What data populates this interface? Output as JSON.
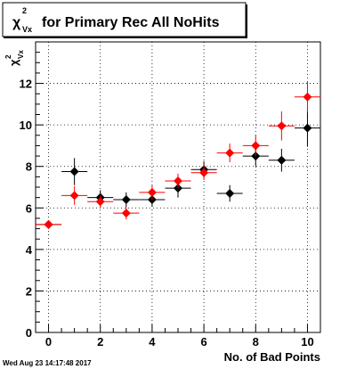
{
  "chart_data": {
    "type": "scatter",
    "title": {
      "symbol": "χ",
      "superscript": "2",
      "subscript": "Vx",
      "text": "for Primary Rec All NoHits"
    },
    "xlabel": "No. of Bad Points",
    "ylabel": {
      "symbol": "χ",
      "superscript": "2",
      "subscript": "Vx"
    },
    "xlim": [
      -0.5,
      10.5
    ],
    "ylim": [
      0,
      14
    ],
    "xticks": [
      0,
      2,
      4,
      6,
      8,
      10
    ],
    "yticks": [
      0,
      2,
      4,
      6,
      8,
      10,
      12
    ],
    "grid": true,
    "series": [
      {
        "color": "#000000",
        "marker": "diamond",
        "points": [
          {
            "x": 0,
            "y": 5.2,
            "yerr": 0.1
          },
          {
            "x": 1,
            "y": 7.75,
            "yerr": 0.65
          },
          {
            "x": 2,
            "y": 6.5,
            "yerr": 0.35
          },
          {
            "x": 3,
            "y": 6.4,
            "yerr": 0.35
          },
          {
            "x": 4,
            "y": 6.4,
            "yerr": 0.35
          },
          {
            "x": 5,
            "y": 6.95,
            "yerr": 0.45
          },
          {
            "x": 6,
            "y": 7.85,
            "yerr": 0.4
          },
          {
            "x": 7,
            "y": 6.7,
            "yerr": 0.4
          },
          {
            "x": 8,
            "y": 8.5,
            "yerr": 0.5
          },
          {
            "x": 9,
            "y": 8.3,
            "yerr": 0.55
          },
          {
            "x": 10,
            "y": 9.85,
            "yerr": 0.9
          }
        ]
      },
      {
        "color": "#ff0000",
        "marker": "diamond",
        "points": [
          {
            "x": 0,
            "y": 5.2,
            "yerr": 0.1
          },
          {
            "x": 1,
            "y": 6.6,
            "yerr": 0.45
          },
          {
            "x": 2,
            "y": 6.3,
            "yerr": 0.3
          },
          {
            "x": 3,
            "y": 5.75,
            "yerr": 0.3
          },
          {
            "x": 4,
            "y": 6.75,
            "yerr": 0.35
          },
          {
            "x": 5,
            "y": 7.3,
            "yerr": 0.35
          },
          {
            "x": 6,
            "y": 7.7,
            "yerr": 0.35
          },
          {
            "x": 7,
            "y": 8.65,
            "yerr": 0.45
          },
          {
            "x": 8,
            "y": 9.0,
            "yerr": 0.5
          },
          {
            "x": 9,
            "y": 9.95,
            "yerr": 0.7
          },
          {
            "x": 10,
            "y": 11.35,
            "yerr": 0.75
          }
        ]
      }
    ]
  },
  "footer": {
    "date": "Wed Aug 23 14:17:48 2017"
  }
}
